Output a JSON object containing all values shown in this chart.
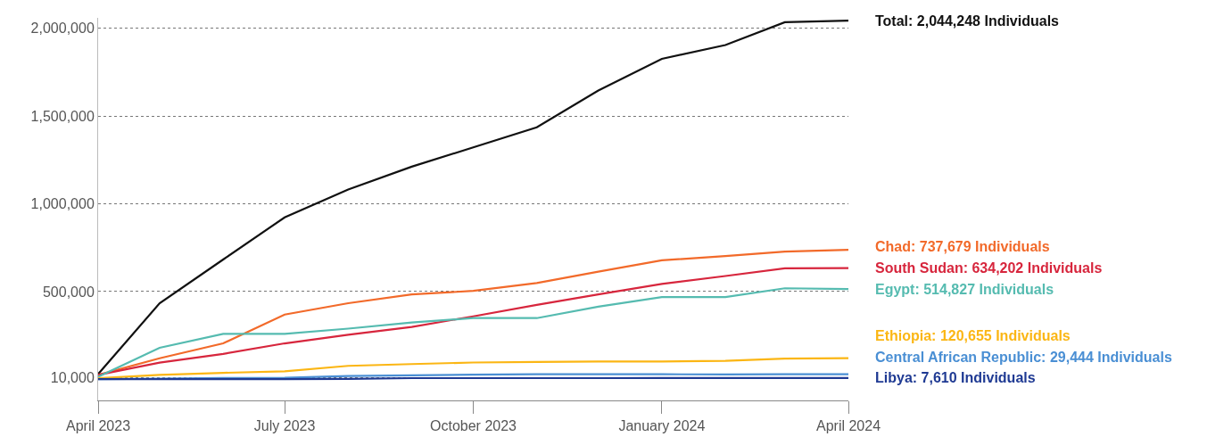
{
  "chart_data": {
    "type": "line",
    "x": [
      "2023-04",
      "2023-05",
      "2023-06",
      "2023-07",
      "2023-08",
      "2023-09",
      "2023-10",
      "2023-11",
      "2023-12",
      "2024-01",
      "2024-02",
      "2024-03",
      "2024-04"
    ],
    "series": [
      {
        "name": "Total: 2,044,248 Individuals",
        "color": "#111111",
        "values": [
          30000,
          434000,
          683000,
          923000,
          1082000,
          1212000,
          1322000,
          1436000,
          1646000,
          1826000,
          1905000,
          2035000,
          2044248
        ]
      },
      {
        "name": "Chad: 737,679 Individuals",
        "color": "#f26a2a",
        "values": [
          25000,
          120000,
          205000,
          369000,
          434000,
          484000,
          504000,
          549000,
          614000,
          678000,
          703000,
          728000,
          737679
        ]
      },
      {
        "name": "South Sudan: 634,202 Individuals",
        "color": "#d7263d",
        "values": [
          25000,
          95000,
          145000,
          205000,
          254000,
          299000,
          359000,
          424000,
          484000,
          544000,
          589000,
          633000,
          634202
        ]
      },
      {
        "name": "Egypt: 514,827 Individuals",
        "color": "#55bbb0",
        "values": [
          15000,
          180000,
          259000,
          259000,
          289000,
          324000,
          349000,
          349000,
          414000,
          469000,
          469000,
          519000,
          514827
        ]
      },
      {
        "name": "Ethiopia: 120,655 Individuals",
        "color": "#fbb614",
        "values": [
          6000,
          25000,
          37000,
          46000,
          77000,
          87000,
          96000,
          99000,
          102000,
          102000,
          105000,
          118000,
          120655
        ]
      },
      {
        "name": "Central African Republic: 29,444 Individuals",
        "color": "#4a8fd4",
        "values": [
          1000,
          4000,
          8000,
          9000,
          19000,
          23000,
          27000,
          29000,
          29000,
          29000,
          28000,
          29000,
          29444
        ]
      },
      {
        "name": "Libya: 7,610 Individuals",
        "color": "#1f3a93",
        "values": [
          1000,
          1000,
          1000,
          1000,
          3000,
          7000,
          7000,
          7000,
          7000,
          7600,
          7600,
          7600,
          7610
        ]
      }
    ],
    "xlim": [
      "2023-04",
      "2024-04"
    ],
    "xticks": [
      {
        "value": "2023-04",
        "label": "April 2023"
      },
      {
        "value": "2023-07",
        "label": "July 2023"
      },
      {
        "value": "2023-10",
        "label": "October 2023"
      },
      {
        "value": "2024-01",
        "label": "January 2024"
      },
      {
        "value": "2024-04",
        "label": "April 2024"
      }
    ],
    "ylim": [
      -120000,
      2060000
    ],
    "yticks": [
      {
        "value": 10000,
        "label": "10,000"
      },
      {
        "value": 500000,
        "label": "500,000"
      },
      {
        "value": 1000000,
        "label": "1,000,000"
      },
      {
        "value": 1500000,
        "label": "1,500,000"
      },
      {
        "value": 2000000,
        "label": "2,000,000"
      }
    ],
    "grid": "y",
    "legend": false,
    "marker": "none",
    "line_style": "solid"
  }
}
